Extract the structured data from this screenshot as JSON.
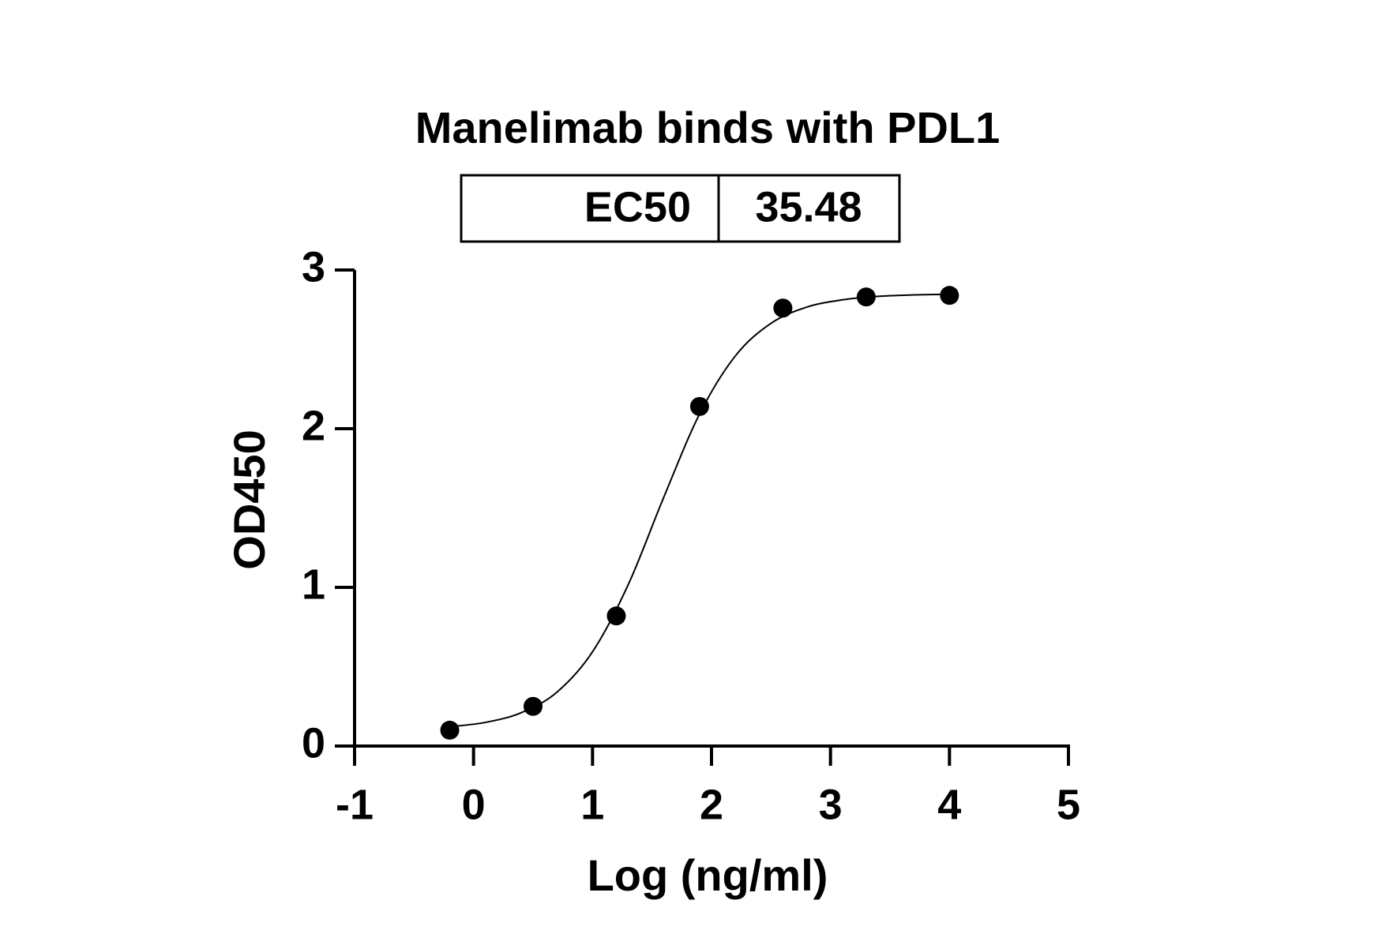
{
  "chart_data": {
    "type": "scatter",
    "title": "Manelimab binds with PDL1",
    "ec50": {
      "label": "EC50",
      "value": 35.48
    },
    "x_label": "Log (ng/ml)",
    "y_label": "OD450",
    "x": [
      -0.2,
      0.5,
      1.2,
      1.9,
      2.6,
      3.3,
      4.0
    ],
    "values": [
      0.1,
      0.25,
      0.82,
      2.14,
      2.76,
      2.83,
      2.84
    ],
    "fit_curve": {
      "x": [
        -0.2,
        0.1,
        0.4,
        0.7,
        1.0,
        1.3,
        1.6,
        1.9,
        2.2,
        2.5,
        2.8,
        3.1,
        3.4,
        3.7,
        4.0
      ],
      "values": [
        0.122,
        0.149,
        0.21,
        0.339,
        0.594,
        1.017,
        1.57,
        2.093,
        2.458,
        2.664,
        2.766,
        2.812,
        2.834,
        2.843,
        2.847
      ]
    },
    "color": "#000000",
    "xlim": [
      -1,
      5
    ],
    "xticks": [
      -1,
      0,
      1,
      2,
      3,
      4,
      5
    ],
    "ylim": [
      0,
      3
    ],
    "yticks": [
      0,
      1,
      2,
      3
    ],
    "grid": false
  }
}
